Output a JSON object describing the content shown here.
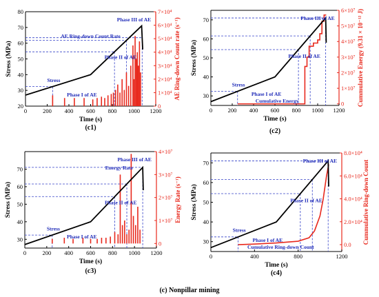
{
  "figure_caption": "(c) Nonpillar mining",
  "colors": {
    "stress": "#000000",
    "ae": "#e8281c",
    "annotation": "#1f2bb8"
  },
  "chart_data": [
    {
      "id": "c1",
      "type": "line",
      "caption": "(c1)",
      "xlabel": "Time (s)",
      "ylabel": "Stress (MPa)",
      "y2label": "AE Ring-down Count rate (s⁻¹)",
      "xlim": [
        0,
        1200
      ],
      "ylim": [
        20,
        80
      ],
      "y2lim": [
        0,
        70000
      ],
      "xticks": [
        "0",
        "200",
        "400",
        "600",
        "800",
        "1000",
        "1200"
      ],
      "yticks": [
        "20",
        "30",
        "40",
        "50",
        "60",
        "70",
        "80"
      ],
      "y2ticks": [
        "0",
        "1×10⁴",
        "2×10⁴",
        "3×10⁴",
        "4×10⁴",
        "5×10⁴",
        "6×10⁴",
        "7×10⁴"
      ],
      "stress": {
        "x": [
          0,
          600,
          1070,
          1080
        ],
        "y": [
          27,
          40,
          71,
          56
        ]
      },
      "ae_type": "bar",
      "ae": {
        "x": [
          250,
          360,
          450,
          540,
          620,
          660,
          700,
          730,
          760,
          790,
          810,
          830,
          850,
          870,
          890,
          910,
          930,
          950,
          970,
          990,
          1000,
          1010,
          1020,
          1030,
          1040,
          1050,
          1060
        ],
        "y": [
          8000,
          6000,
          6000,
          6000,
          5000,
          6000,
          7000,
          6000,
          8000,
          9000,
          10000,
          12000,
          16000,
          10000,
          20000,
          12000,
          25000,
          15000,
          30000,
          45000,
          20000,
          52000,
          35000,
          40000,
          30000,
          48000,
          25000
        ]
      },
      "annotations": {
        "rate": "AE Ring-down Count Rate",
        "stress": "Stress",
        "phase1": "Phase I of AE",
        "phase2": "Phase II of AE",
        "phase3": "Phase III of AE"
      }
    },
    {
      "id": "c2",
      "type": "line",
      "caption": "(c2)",
      "xlabel": "Time (s)",
      "ylabel": "Stress (MPa)",
      "y2label": "Cummulative Energy (9.31 × 10⁻¹² J)",
      "xlim": [
        0,
        1200
      ],
      "ylim": [
        25,
        75
      ],
      "y2lim": [
        -1000000,
        60000000
      ],
      "xticks": [
        "0",
        "200",
        "400",
        "600",
        "800",
        "1000",
        "1200"
      ],
      "yticks": [
        "30",
        "40",
        "50",
        "60",
        "70"
      ],
      "y2ticks": [
        "0",
        "1×10⁷",
        "2×10⁷",
        "3×10⁷",
        "4×10⁷",
        "5×10⁷",
        "6×10⁷"
      ],
      "stress": {
        "x": [
          0,
          600,
          1075,
          1080
        ],
        "y": [
          27,
          40,
          71,
          58
        ]
      },
      "ae_type": "step",
      "ae": {
        "x": [
          250,
          860,
          880,
          900,
          920,
          960,
          1000,
          1020,
          1040,
          1060,
          1080
        ],
        "y": [
          0,
          0,
          24000000,
          30000000,
          37000000,
          39000000,
          41000000,
          45000000,
          53000000,
          57000000,
          57000000
        ]
      },
      "annotations": {
        "energy": "Cumulative Energy",
        "stress": "Stress",
        "phase1": "Phase I of AE",
        "phase2": "Phase II of AE",
        "phase3": "Phase III of AE"
      }
    },
    {
      "id": "c3",
      "type": "line",
      "caption": "(c3)",
      "xlabel": "Time (s)",
      "ylabel": "Stress (MPa)",
      "y2label": "Energy Rate (s⁻¹)",
      "xlim": [
        0,
        1200
      ],
      "ylim": [
        25,
        80
      ],
      "y2lim": [
        -2000000,
        40000000
      ],
      "xticks": [
        "0",
        "200",
        "400",
        "600",
        "800",
        "1000",
        "1200"
      ],
      "yticks": [
        "30",
        "40",
        "50",
        "60",
        "70"
      ],
      "y2ticks": [
        "0",
        "1×10⁷",
        "2×10⁷",
        "3×10⁷",
        "4×10⁷"
      ],
      "stress": {
        "x": [
          0,
          600,
          1075,
          1080
        ],
        "y": [
          27,
          40,
          71,
          58
        ]
      },
      "ae_type": "bar",
      "ae": {
        "x": [
          250,
          360,
          440,
          530,
          600,
          660,
          700,
          740,
          780,
          820,
          850,
          870,
          890,
          910,
          930,
          950,
          970,
          990,
          1010,
          1030,
          1050
        ],
        "y": [
          2000000,
          2500000,
          2000000,
          2500000,
          2000000,
          2000000,
          2500000,
          2500000,
          3000000,
          5000000,
          4000000,
          30000000,
          8000000,
          10000000,
          4000000,
          6000000,
          39000000,
          12000000,
          8000000,
          16000000,
          6000000
        ]
      },
      "annotations": {
        "rate": "Energy Rate",
        "stress": "Stress",
        "phase1": "Phase I of AE",
        "phase2": "Phase II of AE",
        "phase3": "Phase III of AE"
      }
    },
    {
      "id": "c4",
      "type": "line",
      "caption": "(c4)",
      "xlabel": "Time (s)",
      "ylabel": "Stress (MPa)",
      "y2label": "Cummulative Ring-down Count",
      "xlim": [
        0,
        1200
      ],
      "ylim": [
        25,
        75
      ],
      "y2lim": [
        -6000,
        80000
      ],
      "xticks": [
        "0",
        "400",
        "800",
        "1200"
      ],
      "yticks": [
        "30",
        "40",
        "50",
        "60",
        "70"
      ],
      "y2ticks": [
        "0.0",
        "2.0×10⁴",
        "4.0×10⁴",
        "6.0×10⁴",
        "8.0×10⁴"
      ],
      "stress": {
        "x": [
          0,
          600,
          1075,
          1080
        ],
        "y": [
          27,
          40,
          71,
          58
        ]
      },
      "ae_type": "line",
      "ae": {
        "x": [
          250,
          400,
          600,
          800,
          900,
          950,
          1000,
          1030,
          1060,
          1080
        ],
        "y": [
          0,
          500,
          1500,
          3000,
          6000,
          12000,
          25000,
          40000,
          60000,
          70000
        ]
      },
      "annotations": {
        "count": "Cumulative Ring-down Count",
        "stress": "Stress",
        "phase1": "Phase I of AE",
        "phase2": "Phase II of AE",
        "phase3": "Phase III of AE"
      }
    }
  ]
}
